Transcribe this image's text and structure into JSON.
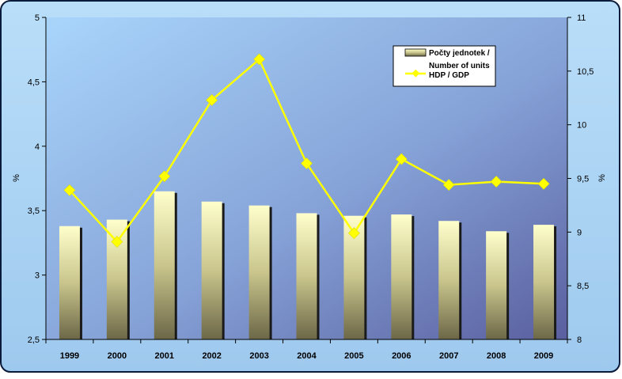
{
  "chart_data": {
    "type": "bar",
    "categories": [
      "1999",
      "2000",
      "2001",
      "2002",
      "2003",
      "2004",
      "2005",
      "2006",
      "2007",
      "2008",
      "2009"
    ],
    "series": [
      {
        "name": "Počty jednotek / Number of units",
        "type": "bar",
        "axis": "left",
        "values": [
          3.38,
          3.43,
          3.65,
          3.57,
          3.54,
          3.48,
          3.46,
          3.47,
          3.42,
          3.34,
          3.39
        ]
      },
      {
        "name": "HDP / GDP",
        "type": "line",
        "axis": "right",
        "values": [
          9.39,
          8.91,
          9.52,
          10.23,
          10.61,
          9.64,
          8.99,
          9.68,
          9.44,
          9.47,
          9.45
        ]
      }
    ],
    "ylabel_left": "%",
    "ylabel_right": "%",
    "ylim_left": [
      2.5,
      5
    ],
    "ylim_right": [
      8,
      11
    ],
    "yticks_left": [
      "2,5",
      "3",
      "3,5",
      "4",
      "4,5",
      "5"
    ],
    "yticks_right": [
      "8",
      "8,5",
      "9",
      "9,5",
      "10",
      "10,5",
      "11"
    ],
    "legend": {
      "placement": "top-right",
      "entries": [
        "Počty jednotek /",
        "Number of units",
        "HDP / GDP"
      ]
    },
    "grid": false
  },
  "colors": {
    "bar_top": "#ffffcc",
    "bar_bottom": "#6f6a48",
    "line": "#ffff00",
    "background_top": "#a8d4f8",
    "background_bottom": "#5f65a4",
    "frame": "#a9d3f9"
  }
}
